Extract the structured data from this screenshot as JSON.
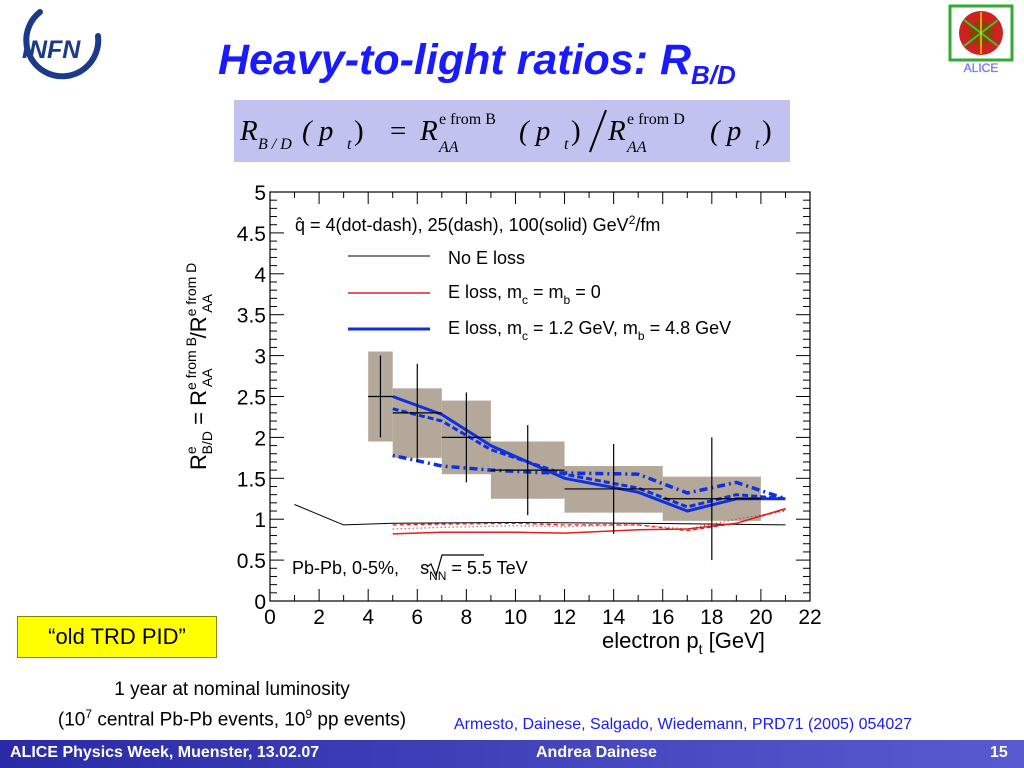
{
  "slide": {
    "title": "Heavy-to-light ratios: R",
    "title_sub": "B/D",
    "formula": {
      "lhs_main": "R",
      "lhs_sub": "B / D",
      "lhs_arg": "( p",
      "lhs_arg_sub": "t",
      "lhs_arg_close": " )",
      "equals": "=",
      "r1_main": "R",
      "r1_super": "e from B",
      "r1_sub": "AA",
      "r1_arg": "( p",
      "r1_arg_sub": "t",
      "r1_arg_close": " )",
      "r2_main": "R",
      "r2_super": "e from D",
      "r2_sub": "AA",
      "r2_arg": "( p",
      "r2_arg_sub": "t",
      "r2_arg_close": " )"
    },
    "infn_logo_text": "INFN",
    "alice_logo_text": "ALICE",
    "trd_label": "“old TRD PID”",
    "lumi_line1": "1 year at nominal luminosity",
    "lumi_line2_a": "(10",
    "lumi_line2_exp1": "7",
    "lumi_line2_b": " central Pb-Pb events, 10",
    "lumi_line2_exp2": "9",
    "lumi_line2_c": " pp events)",
    "reference": "Armesto, Dainese, Salgado, Wiedemann, PRD71 (2005) 054027",
    "footer_left": "ALICE Physics Week, Muenster, 13.02.07",
    "footer_center": "Andrea Dainese",
    "footer_right": "15"
  },
  "colors": {
    "title_blue": "#1a1aff",
    "band_gray": "#b3a89a",
    "curve_red": "#e02020",
    "curve_blue": "#1030e0",
    "curve_black": "#000000",
    "formula_bg": "#c2c2f0",
    "trd_yellow": "#ffff00",
    "footer_blue": "#3333aa"
  },
  "chart_data": {
    "type": "line",
    "x_range": [
      0,
      22
    ],
    "y_range": [
      0,
      5
    ],
    "x_ticks": [
      "0",
      "2",
      "4",
      "6",
      "8",
      "10",
      "12",
      "14",
      "16",
      "18",
      "20",
      "22"
    ],
    "y_ticks": [
      "0",
      "0.5",
      "1",
      "1.5",
      "2",
      "2.5",
      "3",
      "3.5",
      "4",
      "4.5",
      "5"
    ],
    "xlabel": "electron p",
    "xlabel_sub": "t",
    "xlabel_unit": " [GeV]",
    "ylabel_parts": {
      "r": "R",
      "r_sup": "e",
      "r_sub": "B/D",
      "eq": " = R",
      "num_sup": "e from B",
      "num_sub": "AA",
      "slash": "/R",
      "den_sup": "e from D",
      "den_sub": "AA"
    },
    "legend": {
      "header": "q̂ = 4(dot-dash), 25(dash), 100(solid) GeV",
      "header_sup": "2",
      "header_unit": "/fm",
      "entry1": "No E loss",
      "entry2_a": "E loss, m",
      "entry2_sub1": "c",
      "entry2_b": " = m",
      "entry2_sub2": "b",
      "entry2_c": " = 0",
      "entry3_a": "E loss, m",
      "entry3_sub1": "c",
      "entry3_b": " = 1.2 GeV, m",
      "entry3_sub2": "b",
      "entry3_c": " = 4.8 GeV"
    },
    "annotation": {
      "prefix": "Pb-Pb, 0-5%, ",
      "sqrt_s": "s",
      "sqrt_sub": "NN",
      "suffix": " = 5.5 TeV"
    },
    "data_points": [
      {
        "x": 4.5,
        "y": 2.5,
        "x_err": 0.5,
        "y_err": 0.5,
        "sys_low": 1.95,
        "sys_high": 3.05
      },
      {
        "x": 6,
        "y": 2.3,
        "x_err": 1.0,
        "y_err": 0.6,
        "sys_low": 1.75,
        "sys_high": 2.6
      },
      {
        "x": 8,
        "y": 2.0,
        "x_err": 1.0,
        "y_err": 0.55,
        "sys_low": 1.55,
        "sys_high": 2.45
      },
      {
        "x": 10.5,
        "y": 1.6,
        "x_err": 1.5,
        "y_err": 0.55,
        "sys_low": 1.25,
        "sys_high": 1.95
      },
      {
        "x": 14,
        "y": 1.37,
        "x_err": 2.0,
        "y_err": 0.55,
        "sys_low": 1.08,
        "sys_high": 1.65
      },
      {
        "x": 18,
        "y": 1.25,
        "x_err": 2.0,
        "y_err": 0.75,
        "sys_low": 0.98,
        "sys_high": 1.52
      }
    ],
    "series": [
      {
        "style": "black-thin",
        "x": [
          1,
          3,
          5,
          10,
          15,
          21
        ],
        "y": [
          1.18,
          0.93,
          0.95,
          0.96,
          0.95,
          0.93
        ]
      },
      {
        "style": "red-solid",
        "x": [
          5,
          7,
          10,
          12,
          15,
          17,
          19,
          21
        ],
        "y": [
          0.82,
          0.84,
          0.84,
          0.83,
          0.87,
          0.88,
          0.95,
          1.13
        ]
      },
      {
        "style": "red-dash",
        "x": [
          5,
          7,
          10,
          12,
          15,
          17,
          19,
          21
        ],
        "y": [
          0.93,
          0.94,
          0.95,
          0.93,
          0.93,
          0.86,
          0.95,
          1.12
        ]
      },
      {
        "style": "red-dotdash",
        "x": [
          5,
          7,
          10,
          12,
          15,
          17,
          19,
          21
        ],
        "y": [
          0.88,
          0.9,
          0.92,
          0.91,
          0.93,
          0.88,
          1.0,
          1.1
        ]
      },
      {
        "style": "blue-solid",
        "x": [
          5,
          7,
          9,
          12,
          15,
          17,
          19,
          21
        ],
        "y": [
          2.5,
          2.28,
          1.9,
          1.5,
          1.33,
          1.1,
          1.25,
          1.25
        ]
      },
      {
        "style": "blue-dash",
        "x": [
          5,
          7,
          9,
          12,
          15,
          17,
          19,
          21
        ],
        "y": [
          2.35,
          2.2,
          1.85,
          1.55,
          1.38,
          1.15,
          1.3,
          1.25
        ]
      },
      {
        "style": "blue-dotdash",
        "x": [
          5,
          7,
          9,
          11,
          15,
          17,
          19,
          20,
          21
        ],
        "y": [
          1.78,
          1.65,
          1.6,
          1.57,
          1.55,
          1.32,
          1.45,
          1.35,
          1.25
        ]
      }
    ]
  }
}
